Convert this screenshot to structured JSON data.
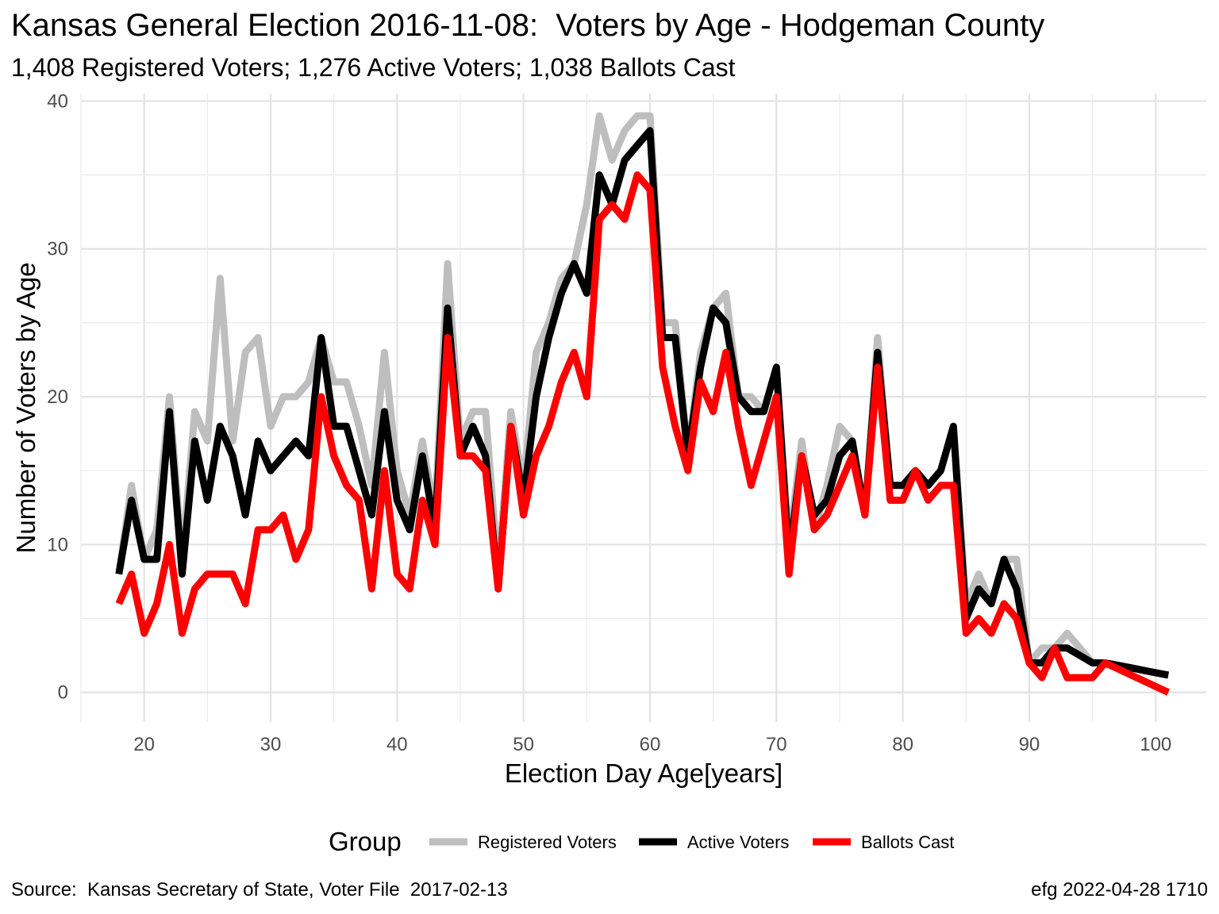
{
  "title": "Kansas General Election 2016-11-08:  Voters by Age - Hodgeman County",
  "subtitle": "1,408 Registered Voters; 1,276 Active Voters; 1,038 Ballots Cast",
  "caption_left": "Source:  Kansas Secretary of State, Voter File  2017-02-13",
  "caption_right": "efg 2022-04-28 1710",
  "chart_data": {
    "type": "line",
    "title": "Kansas General Election 2016-11-08:  Voters by Age - Hodgeman County",
    "subtitle": "1,408 Registered Voters; 1,276 Active Voters; 1,038 Ballots Cast",
    "xlabel": "Election Day Age[years]",
    "ylabel": "Number of Voters by Age",
    "xlim": [
      15,
      104
    ],
    "ylim": [
      -2,
      40.5
    ],
    "x_ticks": [
      20,
      30,
      40,
      50,
      60,
      70,
      80,
      90,
      100
    ],
    "y_ticks": [
      0,
      10,
      20,
      30,
      40
    ],
    "grid": true,
    "legend_title": "Group",
    "legend_position": "bottom",
    "x": [
      18,
      19,
      20,
      21,
      22,
      23,
      24,
      25,
      26,
      27,
      28,
      29,
      30,
      31,
      32,
      33,
      34,
      35,
      36,
      37,
      38,
      39,
      40,
      41,
      42,
      43,
      44,
      45,
      46,
      47,
      48,
      49,
      50,
      51,
      52,
      53,
      54,
      55,
      56,
      57,
      58,
      59,
      60,
      61,
      62,
      63,
      64,
      65,
      66,
      67,
      68,
      69,
      70,
      71,
      72,
      73,
      74,
      75,
      76,
      77,
      78,
      79,
      80,
      81,
      82,
      83,
      84,
      85,
      86,
      87,
      88,
      89,
      90,
      91,
      92,
      93,
      94,
      95,
      96,
      97,
      98,
      99,
      100,
      101
    ],
    "series": [
      {
        "name": "Registered Voters",
        "color": "#bebebe",
        "values": [
          8,
          14,
          9,
          11,
          20,
          9,
          19,
          17,
          28,
          17,
          23,
          24,
          18,
          20,
          20,
          21,
          24,
          21,
          21,
          18,
          14,
          23,
          15,
          12,
          17,
          12,
          29,
          17,
          19,
          19,
          8,
          19,
          14,
          23,
          25,
          28,
          29,
          33,
          39,
          36,
          38,
          39,
          39,
          25,
          25,
          16,
          23,
          26,
          27,
          20,
          20,
          19,
          22,
          10,
          17,
          11,
          14,
          18,
          17,
          12,
          24,
          14,
          14,
          15,
          14,
          15,
          18,
          6,
          8,
          6,
          9,
          9,
          2,
          3,
          3,
          4,
          3,
          2,
          2,
          1.83,
          1.67,
          1.5,
          1.33,
          1.17
        ]
      },
      {
        "name": "Active Voters",
        "color": "#000000",
        "values": [
          8,
          13,
          9,
          9,
          19,
          8,
          17,
          13,
          18,
          16,
          12,
          17,
          15,
          16,
          17,
          16,
          24,
          18,
          18,
          15,
          12,
          19,
          13,
          11,
          16,
          11,
          26,
          16,
          18,
          16,
          7,
          18,
          13,
          20,
          24,
          27,
          29,
          27,
          35,
          33,
          36,
          37,
          38,
          24,
          24,
          16,
          22,
          26,
          25,
          20,
          19,
          19,
          22,
          9,
          16,
          12,
          13,
          16,
          17,
          12,
          23,
          14,
          14,
          15,
          14,
          15,
          18,
          5,
          7,
          6,
          9,
          7,
          2,
          2,
          3,
          3,
          2.5,
          2,
          2,
          1.83,
          1.67,
          1.5,
          1.33,
          1.17
        ]
      },
      {
        "name": "Ballots Cast",
        "color": "#ff0000",
        "values": [
          6,
          8,
          4,
          6,
          10,
          4,
          7,
          8,
          8,
          8,
          6,
          11,
          11,
          12,
          9,
          11,
          20,
          16,
          14,
          13,
          7,
          15,
          8,
          7,
          13,
          10,
          24,
          16,
          16,
          15,
          7,
          18,
          12,
          16,
          18,
          21,
          23,
          20,
          32,
          33,
          32,
          35,
          34,
          22,
          18,
          15,
          21,
          19,
          23,
          18,
          14,
          17,
          20,
          8,
          16,
          11,
          12,
          14,
          16,
          12,
          22,
          13,
          13,
          15,
          13,
          14,
          14,
          4,
          5,
          4,
          6,
          5,
          2,
          1,
          3,
          1,
          1,
          1,
          2,
          1.6,
          1.2,
          0.8,
          0.4,
          0
        ]
      }
    ]
  }
}
